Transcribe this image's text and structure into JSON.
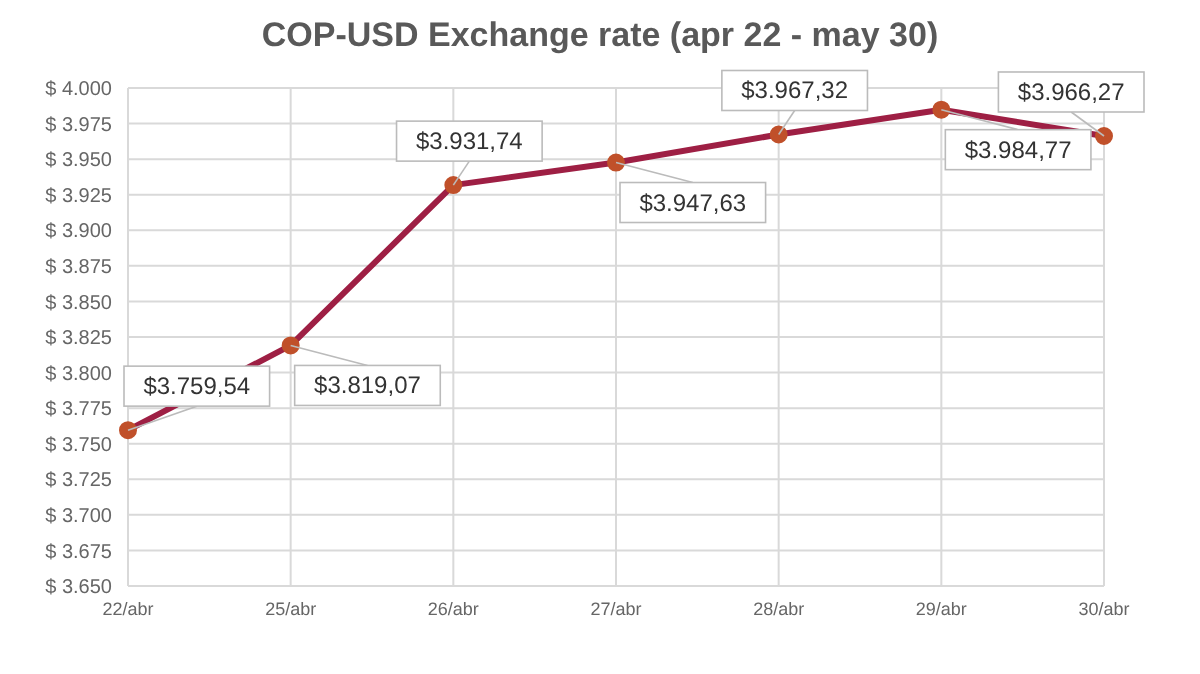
{
  "chart_data": {
    "type": "line",
    "title": "COP-USD Exchange rate (apr 22 - may 30)",
    "categories": [
      "22/abr",
      "25/abr",
      "26/abr",
      "27/abr",
      "28/abr",
      "29/abr",
      "30/abr"
    ],
    "series": [
      {
        "color": "#9e1f44",
        "values": [
          3759.54,
          3819.07,
          3931.74,
          3947.63,
          3967.32,
          3984.77,
          3966.27
        ],
        "value_labels": [
          "$3.759,54",
          "$3.819,07",
          "$3.931,74",
          "$3.947,63",
          "$3.967,32",
          "$3.984,77",
          "$3.966,27"
        ]
      }
    ],
    "ylim": [
      3650,
      4000
    ],
    "yticks": [
      {
        "value": 3650,
        "label": "$ 3.650"
      },
      {
        "value": 3675,
        "label": "$ 3.675"
      },
      {
        "value": 3700,
        "label": "$ 3.700"
      },
      {
        "value": 3725,
        "label": "$ 3.725"
      },
      {
        "value": 3750,
        "label": "$ 3.750"
      },
      {
        "value": 3775,
        "label": "$ 3.775"
      },
      {
        "value": 3800,
        "label": "$ 3.800"
      },
      {
        "value": 3825,
        "label": "$ 3.825"
      },
      {
        "value": 3850,
        "label": "$ 3.850"
      },
      {
        "value": 3875,
        "label": "$ 3.875"
      },
      {
        "value": 3900,
        "label": "$ 3.900"
      },
      {
        "value": 3925,
        "label": "$ 3.925"
      },
      {
        "value": 3950,
        "label": "$ 3.950"
      },
      {
        "value": 3975,
        "label": "$ 3.975"
      },
      {
        "value": 4000,
        "label": "$ 4.000"
      }
    ],
    "grid": true,
    "marker": "circle",
    "line_style": "solid"
  }
}
